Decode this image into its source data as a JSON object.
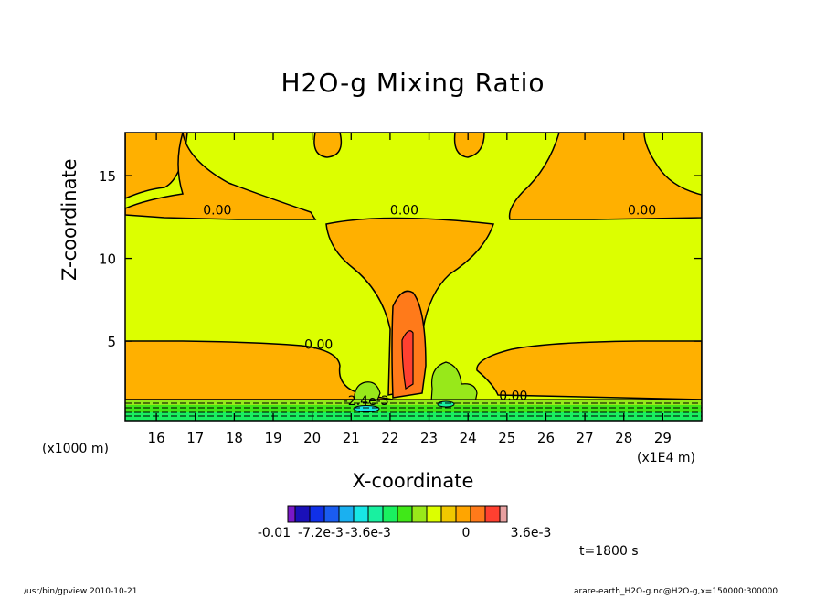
{
  "chart_data": {
    "type": "heatmap",
    "title": "H2O-g Mixing Ratio",
    "xlabel": "X-coordinate",
    "ylabel": "Z-coordinate",
    "x_unit_label": "(x1000 m)",
    "x_scale_label": "(x1E4 m)",
    "x_ticks": [
      16,
      17,
      18,
      19,
      20,
      21,
      22,
      23,
      24,
      25,
      26,
      27,
      28,
      29
    ],
    "y_ticks": [
      5,
      10,
      15
    ],
    "xlim": [
      15.2,
      30.0
    ],
    "ylim": [
      0.2,
      17.6
    ],
    "contour_labels": [
      {
        "text": "0.00",
        "x": 17.2,
        "z": 12.7
      },
      {
        "text": "0.00",
        "x": 22.0,
        "z": 12.7
      },
      {
        "text": "0.00",
        "x": 28.1,
        "z": 12.7
      },
      {
        "text": "0.00",
        "x": 19.8,
        "z": 4.6
      },
      {
        "text": "0.00",
        "x": 24.8,
        "z": 1.5
      },
      {
        "text": "-2.4e-3",
        "x": 20.8,
        "z": 1.2
      }
    ],
    "colorbar": {
      "colors": [
        "#7a18c8",
        "#1a10b8",
        "#1030e8",
        "#1a5cf0",
        "#1ab0f0",
        "#18e6e6",
        "#19f0a0",
        "#1af060",
        "#40e818",
        "#98e81a",
        "#dcff00",
        "#f0c800",
        "#ffa500",
        "#ff7a1a",
        "#ff4030",
        "#e8a0a0"
      ],
      "tick_labels": [
        "-0.01",
        "-7.2e-3",
        "-3.6e-3",
        "0",
        "3.6e-3"
      ]
    }
  },
  "time_label": "t=1800 s",
  "footer": {
    "left": "/usr/bin/gpview   2010-10-21",
    "right": "arare-earth_H2O-g.nc@H2O-g,x=150000:300000"
  }
}
